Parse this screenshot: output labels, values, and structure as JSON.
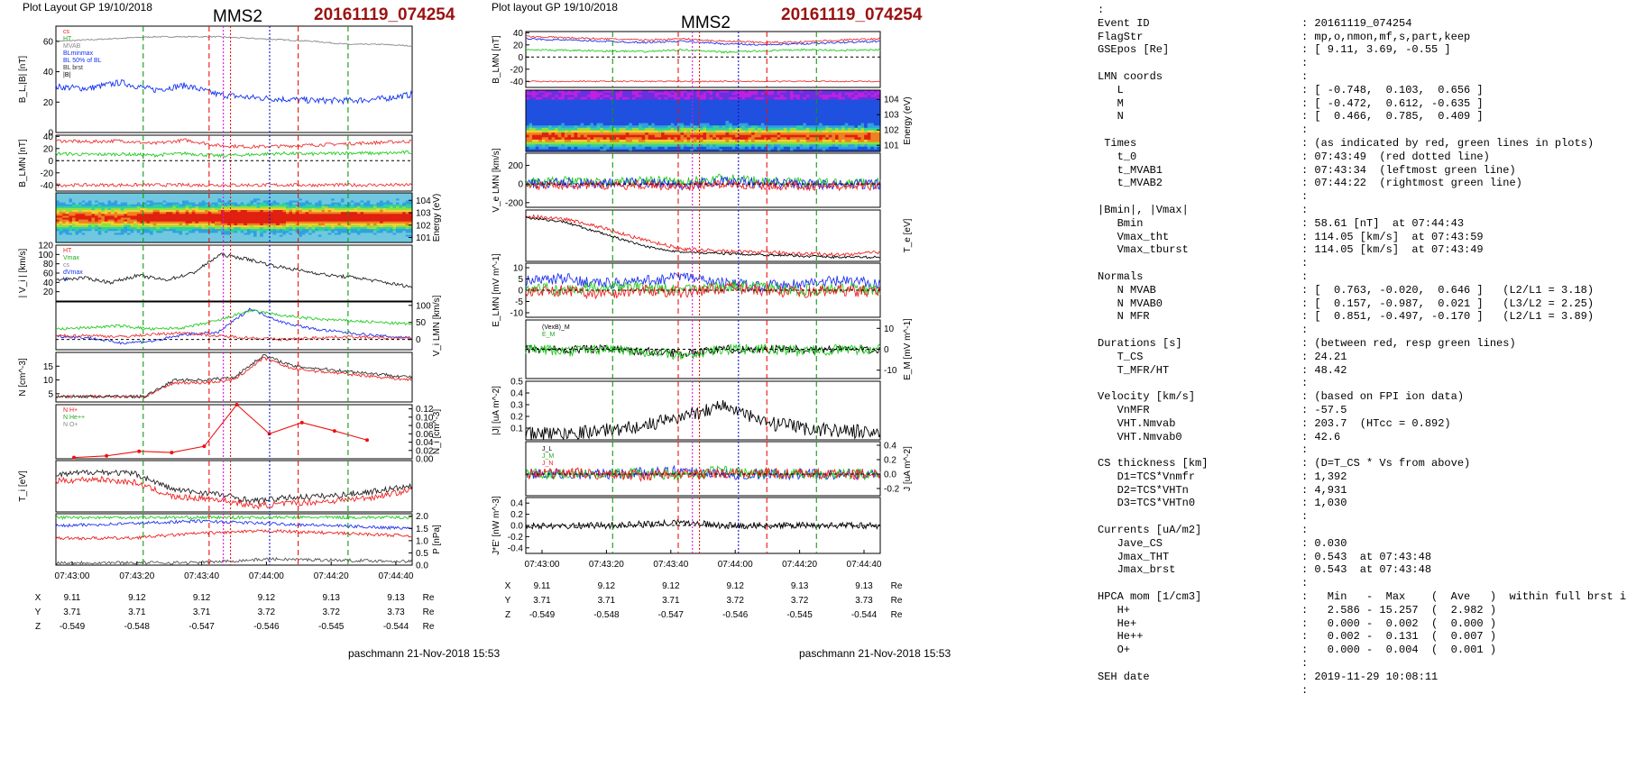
{
  "header": {
    "left_label": "Plot Layout GP 19/10/2018",
    "right_label": "Plot layout GP 19/10/2018",
    "spacecraft": "MMS2",
    "event": "20161119_074254"
  },
  "footer": {
    "left": "paschmann 21-Nov-2018 15:53",
    "right": "paschmann 21-Nov-2018 15:53"
  },
  "colors": {
    "event_red": "#9b1111",
    "red_lines": "#ee1111",
    "green_lines": "#119911",
    "magenta_line": "#e010e0",
    "blue_line": "#1111cc"
  },
  "time_axis": {
    "ticks": [
      "07:43:00",
      "07:43:20",
      "07:43:40",
      "07:44:00",
      "07:44:20",
      "07:44:40"
    ],
    "pos_rows": [
      {
        "label": "X",
        "values": [
          "9.11",
          "9.12",
          "9.12",
          "9.12",
          "9.13",
          "9.13"
        ],
        "unit": "Re"
      },
      {
        "label": "Y",
        "values": [
          "3.71",
          "3.71",
          "3.71",
          "3.72",
          "3.72",
          "3.73"
        ],
        "unit": "Re"
      },
      {
        "label": "Z",
        "values": [
          "-0.549",
          "-0.548",
          "-0.547",
          "-0.546",
          "-0.545",
          "-0.544"
        ],
        "unit": "Re"
      }
    ]
  },
  "chart_data": [
    {
      "type": "line",
      "panel": "B_L,|B|",
      "ylabel": "B_L,|B| [nT]",
      "ylim": [
        0,
        70
      ],
      "ticks": [
        "0",
        "20",
        "40",
        "60"
      ],
      "legend": [
        "cs",
        "HT",
        "MVAB",
        "BLminmax",
        "BL 50% of BL",
        "BL brst",
        "|B|"
      ],
      "series": [
        {
          "name": "|B|",
          "values": [
            60,
            61,
            62,
            63,
            63,
            63,
            62,
            61,
            60,
            58,
            58,
            57
          ]
        },
        {
          "name": "BL brst",
          "values": [
            30,
            29,
            33,
            28,
            31,
            25,
            23,
            22,
            21,
            21,
            22,
            25
          ]
        }
      ]
    },
    {
      "type": "line",
      "panel": "B_LMN",
      "ylabel": "B_LMN [nT]",
      "ylim": [
        -50,
        42
      ],
      "ticks": [
        "40",
        "20",
        "0",
        "-20",
        "-40"
      ],
      "series": [
        {
          "name": "B_L",
          "values": [
            33,
            31,
            33,
            28,
            34,
            25,
            23,
            24,
            26,
            28,
            30,
            32
          ]
        },
        {
          "name": "B_M",
          "values": [
            12,
            10,
            11,
            9,
            12,
            8,
            10,
            12,
            11,
            13,
            12,
            14
          ]
        },
        {
          "name": "B_N",
          "values": [
            -40,
            -40,
            -40,
            -40,
            -40,
            -40,
            -40,
            -40,
            -40,
            -40,
            -40,
            -40
          ]
        }
      ]
    },
    {
      "type": "heatmap",
      "panel": "Energy spectrogram",
      "ylabel": "Energy (eV)",
      "ticks": [
        "10^4",
        "10^3",
        "10^2",
        "10^1"
      ]
    },
    {
      "type": "line",
      "panel": "|V_i|",
      "ylabel": "| V_i | [km/s]",
      "ylim": [
        0,
        120
      ],
      "ticks": [
        "120",
        "100",
        "80",
        "60",
        "40",
        "20"
      ],
      "legend": [
        "HT",
        "Vmax",
        "cs",
        "dVmax",
        "V"
      ],
      "series": [
        {
          "name": "V",
          "values": [
            45,
            50,
            40,
            55,
            45,
            60,
            100,
            90,
            75,
            65,
            55,
            50,
            40,
            30
          ]
        }
      ]
    },
    {
      "type": "line",
      "panel": "V_i LMN",
      "ylabel": "V_i LMN [km/s]",
      "ylim": [
        -30,
        110
      ],
      "ticks": [
        "100",
        "50",
        "0"
      ],
      "series": [
        {
          "name": "V_L",
          "values": [
            10,
            5,
            -10,
            -5,
            15,
            20,
            90,
            50,
            30,
            20,
            10,
            5
          ]
        },
        {
          "name": "V_M",
          "values": [
            30,
            35,
            40,
            30,
            35,
            55,
            85,
            70,
            60,
            55,
            50,
            45
          ]
        },
        {
          "name": "V_N",
          "values": [
            10,
            12,
            8,
            15,
            20,
            10,
            5,
            0,
            5,
            8,
            5,
            3
          ]
        }
      ]
    },
    {
      "type": "line",
      "panel": "N",
      "ylabel": "N [cm^-3]",
      "ylim": [
        2,
        20
      ],
      "ticks": [
        "15",
        "10",
        "5"
      ],
      "series": [
        {
          "name": "Ne",
          "values": [
            4,
            4,
            4,
            4,
            9,
            9,
            10,
            18,
            14,
            13,
            12,
            11,
            10
          ]
        },
        {
          "name": "Ni",
          "values": [
            4,
            4,
            4,
            4,
            10,
            10,
            11,
            19,
            15,
            14,
            13,
            12,
            11
          ]
        }
      ]
    },
    {
      "type": "line",
      "panel": "N_i",
      "ylabel": "N_i [cm^-3]",
      "ylim": [
        0,
        0.13
      ],
      "ticks": [
        "0.12",
        "0.10",
        "0.08",
        "0.06",
        "0.04",
        "0.02",
        "0.00"
      ],
      "legend": [
        "N  H+",
        "N  He++",
        "N  O+"
      ],
      "series": [
        {
          "name": "He++",
          "values": [
            0.003,
            0.007,
            0.018,
            0.015,
            0.03,
            0.13,
            0.06,
            0.087,
            0.067,
            0.045
          ]
        }
      ]
    },
    {
      "type": "line",
      "panel": "T_i",
      "ylabel": "T_i [eV]",
      "series": [
        {
          "name": "T_||",
          "values": [
            70,
            75,
            72,
            50,
            45,
            35,
            40,
            42,
            48,
            55
          ]
        },
        {
          "name": "T_perp",
          "values": [
            62,
            65,
            60,
            40,
            38,
            28,
            32,
            35,
            40,
            50
          ]
        }
      ]
    },
    {
      "type": "line",
      "panel": "P",
      "ylabel": "P [nPa]",
      "ylim": [
        0,
        2.1
      ],
      "ticks": [
        "2.0",
        "1.5",
        "1.0",
        "0.5",
        "0.0"
      ],
      "series": [
        {
          "name": "P",
          "values": [
            1.95,
            1.95,
            1.95,
            1.95,
            1.95,
            1.95
          ]
        },
        {
          "name": "Pi",
          "values": [
            1.1,
            1.1,
            1.3,
            1.4,
            1.3,
            1.2
          ]
        },
        {
          "name": "Pm",
          "values": [
            1.6,
            1.7,
            1.8,
            1.7,
            1.6,
            1.5
          ]
        },
        {
          "name": "Pkin",
          "values": [
            0.1,
            0.1,
            0.1,
            0.25,
            0.2,
            0.15
          ]
        }
      ]
    },
    {
      "type": "line",
      "panel": "B_LMN (right)",
      "ylabel": "B_LMN [nT]",
      "ylim": [
        -50,
        42
      ],
      "ticks": [
        "40",
        "20",
        "0",
        "-20",
        "-40"
      ]
    },
    {
      "type": "heatmap",
      "panel": "Energy spectrogram (right)",
      "ylabel": "Energy (eV)",
      "ticks": [
        "10^4",
        "10^3",
        "10^2",
        "10^1"
      ]
    },
    {
      "type": "line",
      "panel": "V_e LMN",
      "ylabel": "V_e LMN [km/s]",
      "ylim": [
        -250,
        330
      ],
      "ticks": [
        "200",
        "0",
        "-200"
      ]
    },
    {
      "type": "line",
      "panel": "T_e",
      "ylabel": "T_e [eV]"
    },
    {
      "type": "line",
      "panel": "E_LMN",
      "ylabel": "E_LMN [mV m^-1]",
      "ylim": [
        -12,
        12
      ],
      "ticks": [
        "10",
        "5",
        "0",
        "-5",
        "-10"
      ]
    },
    {
      "type": "line",
      "panel": "E_M",
      "ylabel": "E_M [mV m^-1]",
      "ylim": [
        -14,
        14
      ],
      "ticks": [
        "10",
        "0",
        "-10"
      ],
      "legend": [
        "(VexB)_M",
        "E_M"
      ]
    },
    {
      "type": "line",
      "panel": "|J|",
      "ylabel": "|J| [uA m^-2]",
      "ylim": [
        0,
        0.5
      ],
      "ticks": [
        "0.5",
        "0.4",
        "0.3",
        "0.2",
        "0.1"
      ]
    },
    {
      "type": "line",
      "panel": "J",
      "ylabel": "J [uA m^-2]",
      "ylim": [
        -0.3,
        0.45
      ],
      "ticks": [
        "0.4",
        "0.2",
        "0.0",
        "-0.2"
      ],
      "legend": [
        "J_L",
        "J_M",
        "J_N"
      ]
    },
    {
      "type": "line",
      "panel": "J*E'",
      "ylabel": "J*E' [nW m^-3]",
      "ylim": [
        -0.5,
        0.5
      ],
      "ticks": [
        "0.4",
        "0.2",
        "0.0",
        "-0.2",
        "-0.4"
      ]
    }
  ],
  "info_rows": [
    [
      ":",
      ""
    ],
    [
      "Event ID",
      ": 20161119_074254"
    ],
    [
      "FlagStr",
      ": mp,o,nmon,mf,s,part,keep"
    ],
    [
      "GSEpos [Re]",
      ": [ 9.11, 3.69, -0.55 ]"
    ],
    [
      "",
      ":"
    ],
    [
      "LMN coords",
      ":"
    ],
    [
      "   L",
      ": [ -0.748,  0.103,  0.656 ]"
    ],
    [
      "   M",
      ": [ -0.472,  0.612, -0.635 ]"
    ],
    [
      "   N",
      ": [  0.466,  0.785,  0.409 ]"
    ],
    [
      "",
      ":"
    ],
    [
      " Times",
      ": (as indicated by red, green lines in plots)"
    ],
    [
      "   t_0",
      ": 07:43:49  (red dotted line)"
    ],
    [
      "   t_MVAB1",
      ": 07:43:34  (leftmost green line)"
    ],
    [
      "   t_MVAB2",
      ": 07:44:22  (rightmost green line)"
    ],
    [
      "",
      ":"
    ],
    [
      "|Bmin|, |Vmax|",
      ":"
    ],
    [
      "   Bmin",
      ": 58.61 [nT]  at 07:44:43"
    ],
    [
      "   Vmax_tht",
      ": 114.05 [km/s]  at 07:43:59"
    ],
    [
      "   Vmax_tburst",
      ": 114.05 [km/s]  at 07:43:49"
    ],
    [
      "",
      ":"
    ],
    [
      "Normals",
      ":"
    ],
    [
      "   N MVAB",
      ": [  0.763, -0.020,  0.646 ]   (L2/L1 = 3.18)"
    ],
    [
      "   N MVAB0",
      ": [  0.157, -0.987,  0.021 ]   (L3/L2 = 2.25)"
    ],
    [
      "   N MFR",
      ": [  0.851, -0.497, -0.170 ]   (L2/L1 = 3.89)"
    ],
    [
      "",
      ":"
    ],
    [
      "Durations [s]",
      ": (between red, resp green lines)"
    ],
    [
      "   T_CS",
      ": 24.21"
    ],
    [
      "   T_MFR/HT",
      ": 48.42"
    ],
    [
      "",
      ":"
    ],
    [
      "Velocity [km/s]",
      ": (based on FPI ion data)"
    ],
    [
      "   VnMFR",
      ": -57.5"
    ],
    [
      "   VHT.Nmvab",
      ": 203.7  (HTcc = 0.892)"
    ],
    [
      "   VHT.Nmvab0",
      ": 42.6"
    ],
    [
      "",
      ":"
    ],
    [
      "CS thickness [km]",
      ": (D=T_CS * Vs from above)"
    ],
    [
      "   D1=TCS*Vnmfr",
      ": 1,392"
    ],
    [
      "   D2=TCS*VHTn",
      ": 4,931"
    ],
    [
      "   D3=TCS*VHTn0",
      ": 1,030"
    ],
    [
      "",
      ":"
    ],
    [
      "Currents [uA/m2]",
      ":"
    ],
    [
      "   Jave_CS",
      ": 0.030"
    ],
    [
      "   Jmax_THT",
      ": 0.543  at 07:43:48"
    ],
    [
      "   Jmax_brst",
      ": 0.543  at 07:43:48"
    ],
    [
      "",
      ":"
    ],
    [
      "HPCA mom [1/cm3]",
      ":   Min   -  Max    (  Ave   )  within full brst int"
    ],
    [
      "   H+",
      ":   2.586 - 15.257  (  2.982 )"
    ],
    [
      "   He+",
      ":   0.000 -  0.002  (  0.000 )"
    ],
    [
      "   He++",
      ":   0.002 -  0.131  (  0.007 )"
    ],
    [
      "   O+",
      ":   0.000 -  0.004  (  0.001 )"
    ],
    [
      "",
      ":"
    ],
    [
      "SEH date",
      ": 2019-11-29 10:08:11"
    ],
    [
      "",
      ":"
    ]
  ]
}
